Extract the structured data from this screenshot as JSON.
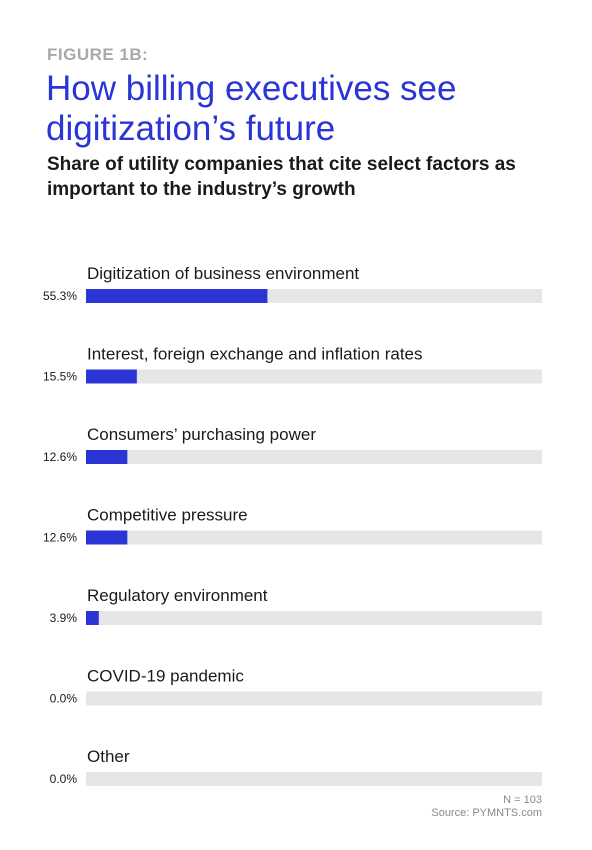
{
  "figure_label": "FIGURE 1B:",
  "title": "How billing executives see digitization’s future",
  "subtitle": "Share of utility companies that cite select factors as important to the industry’s growth",
  "footer": {
    "n_label": "N = 103",
    "source": "Source: PYMNTS.com"
  },
  "colors": {
    "accent": "#2b35d6",
    "track": "#e6e6e6",
    "text": "#1a1a1a"
  },
  "chart_data": {
    "type": "bar",
    "orientation": "horizontal",
    "categories": [
      "Digitization of business environment",
      "Interest, foreign exchange and inflation rates",
      "Consumers’ purchasing power",
      "Competitive pressure",
      "Regulatory environment",
      "COVID-19 pandemic",
      "Other"
    ],
    "values": [
      55.3,
      15.5,
      12.6,
      12.6,
      3.9,
      0.0,
      0.0
    ],
    "value_labels": [
      "55.3%",
      "15.5%",
      "12.6%",
      "12.6%",
      "3.9%",
      "0.0%",
      "0.0%"
    ],
    "xlim": [
      0,
      139
    ],
    "grid": false
  }
}
